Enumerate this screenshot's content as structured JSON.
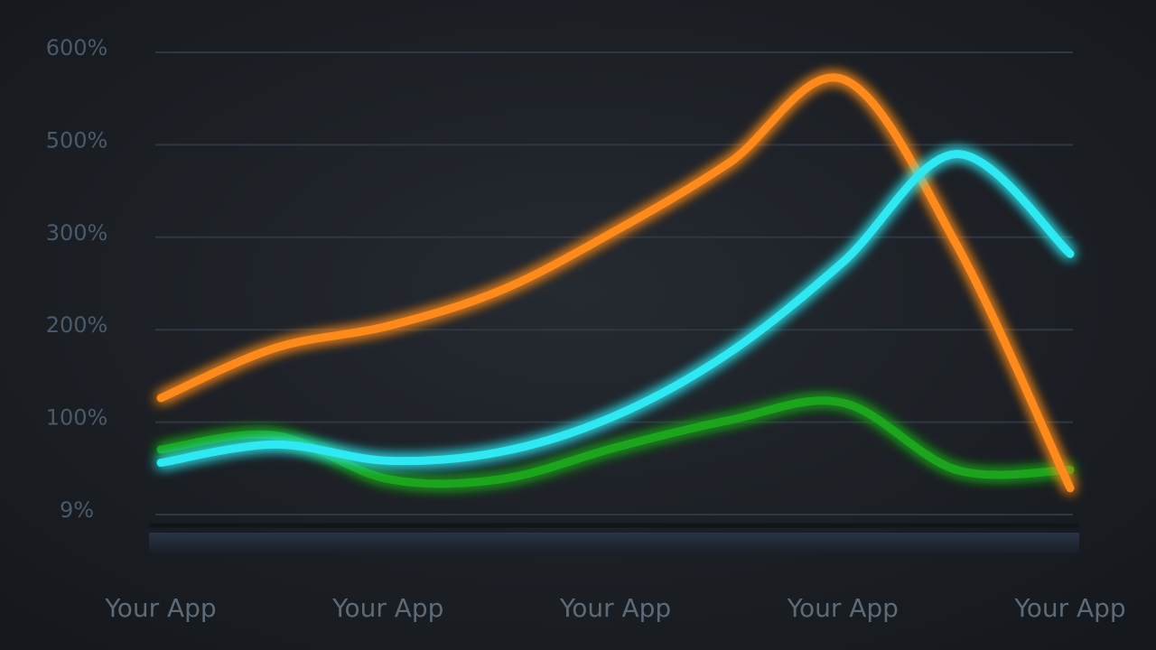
{
  "chart_data": {
    "type": "line",
    "categories": [
      "Your App",
      null,
      "Your App",
      null,
      "Your App",
      null,
      "Your App",
      null,
      "Your App"
    ],
    "series": [
      {
        "name": "orange",
        "color": "#ff8a1c",
        "values": [
          126,
          180,
          204,
          243,
          314,
          461,
          571,
          292,
          35
        ]
      },
      {
        "name": "cyan",
        "color": "#2fe8f2",
        "values": [
          60,
          78,
          62,
          71,
          107,
          175,
          273,
          480,
          282
        ]
      },
      {
        "name": "green",
        "color": "#1ea51e",
        "values": [
          73,
          87,
          44,
          44,
          75,
          102,
          121,
          53,
          53
        ]
      }
    ],
    "ylim": [
      9,
      600
    ],
    "yscale": "tick-spaced",
    "yticks": [
      {
        "value": 9,
        "label": "9%"
      },
      {
        "value": 100,
        "label": "100%"
      },
      {
        "value": 200,
        "label": "200%"
      },
      {
        "value": 300,
        "label": "300%"
      },
      {
        "value": 500,
        "label": "500%"
      },
      {
        "value": 600,
        "label": "600%"
      }
    ],
    "grid": true
  }
}
